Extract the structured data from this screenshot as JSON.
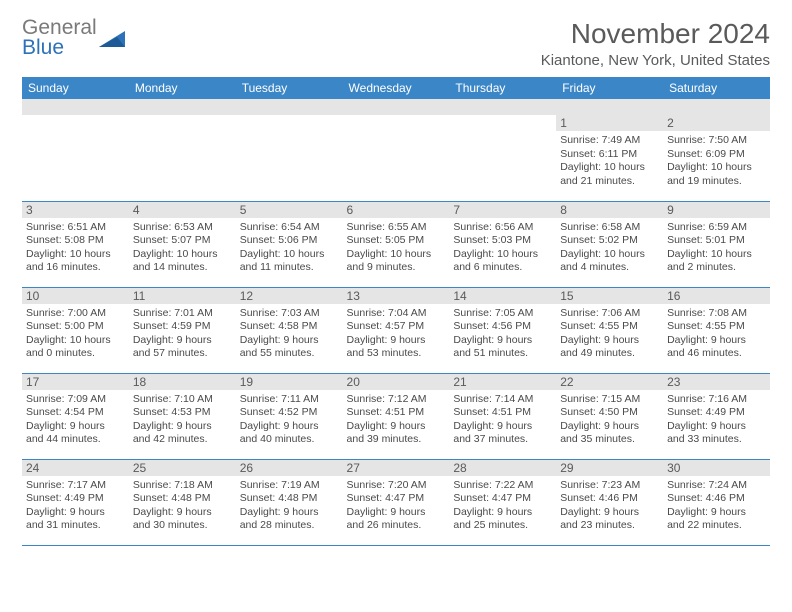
{
  "brand": {
    "line1": "General",
    "line2": "Blue"
  },
  "title": "November 2024",
  "location": "Kiantone, New York, United States",
  "colors": {
    "header_bg": "#3b86c7",
    "header_text": "#ffffff",
    "daynum_bg": "#e5e5e5",
    "text": "#4a4a4a",
    "rule": "#3b86c7",
    "brand_gray": "#7a7a7a",
    "brand_blue": "#2d72b8"
  },
  "dow": [
    "Sunday",
    "Monday",
    "Tuesday",
    "Wednesday",
    "Thursday",
    "Friday",
    "Saturday"
  ],
  "weeks": [
    [
      null,
      null,
      null,
      null,
      null,
      {
        "n": "1",
        "sr": "7:49 AM",
        "ss": "6:11 PM",
        "dl": "10 hours and 21 minutes."
      },
      {
        "n": "2",
        "sr": "7:50 AM",
        "ss": "6:09 PM",
        "dl": "10 hours and 19 minutes."
      }
    ],
    [
      {
        "n": "3",
        "sr": "6:51 AM",
        "ss": "5:08 PM",
        "dl": "10 hours and 16 minutes."
      },
      {
        "n": "4",
        "sr": "6:53 AM",
        "ss": "5:07 PM",
        "dl": "10 hours and 14 minutes."
      },
      {
        "n": "5",
        "sr": "6:54 AM",
        "ss": "5:06 PM",
        "dl": "10 hours and 11 minutes."
      },
      {
        "n": "6",
        "sr": "6:55 AM",
        "ss": "5:05 PM",
        "dl": "10 hours and 9 minutes."
      },
      {
        "n": "7",
        "sr": "6:56 AM",
        "ss": "5:03 PM",
        "dl": "10 hours and 6 minutes."
      },
      {
        "n": "8",
        "sr": "6:58 AM",
        "ss": "5:02 PM",
        "dl": "10 hours and 4 minutes."
      },
      {
        "n": "9",
        "sr": "6:59 AM",
        "ss": "5:01 PM",
        "dl": "10 hours and 2 minutes."
      }
    ],
    [
      {
        "n": "10",
        "sr": "7:00 AM",
        "ss": "5:00 PM",
        "dl": "10 hours and 0 minutes."
      },
      {
        "n": "11",
        "sr": "7:01 AM",
        "ss": "4:59 PM",
        "dl": "9 hours and 57 minutes."
      },
      {
        "n": "12",
        "sr": "7:03 AM",
        "ss": "4:58 PM",
        "dl": "9 hours and 55 minutes."
      },
      {
        "n": "13",
        "sr": "7:04 AM",
        "ss": "4:57 PM",
        "dl": "9 hours and 53 minutes."
      },
      {
        "n": "14",
        "sr": "7:05 AM",
        "ss": "4:56 PM",
        "dl": "9 hours and 51 minutes."
      },
      {
        "n": "15",
        "sr": "7:06 AM",
        "ss": "4:55 PM",
        "dl": "9 hours and 49 minutes."
      },
      {
        "n": "16",
        "sr": "7:08 AM",
        "ss": "4:55 PM",
        "dl": "9 hours and 46 minutes."
      }
    ],
    [
      {
        "n": "17",
        "sr": "7:09 AM",
        "ss": "4:54 PM",
        "dl": "9 hours and 44 minutes."
      },
      {
        "n": "18",
        "sr": "7:10 AM",
        "ss": "4:53 PM",
        "dl": "9 hours and 42 minutes."
      },
      {
        "n": "19",
        "sr": "7:11 AM",
        "ss": "4:52 PM",
        "dl": "9 hours and 40 minutes."
      },
      {
        "n": "20",
        "sr": "7:12 AM",
        "ss": "4:51 PM",
        "dl": "9 hours and 39 minutes."
      },
      {
        "n": "21",
        "sr": "7:14 AM",
        "ss": "4:51 PM",
        "dl": "9 hours and 37 minutes."
      },
      {
        "n": "22",
        "sr": "7:15 AM",
        "ss": "4:50 PM",
        "dl": "9 hours and 35 minutes."
      },
      {
        "n": "23",
        "sr": "7:16 AM",
        "ss": "4:49 PM",
        "dl": "9 hours and 33 minutes."
      }
    ],
    [
      {
        "n": "24",
        "sr": "7:17 AM",
        "ss": "4:49 PM",
        "dl": "9 hours and 31 minutes."
      },
      {
        "n": "25",
        "sr": "7:18 AM",
        "ss": "4:48 PM",
        "dl": "9 hours and 30 minutes."
      },
      {
        "n": "26",
        "sr": "7:19 AM",
        "ss": "4:48 PM",
        "dl": "9 hours and 28 minutes."
      },
      {
        "n": "27",
        "sr": "7:20 AM",
        "ss": "4:47 PM",
        "dl": "9 hours and 26 minutes."
      },
      {
        "n": "28",
        "sr": "7:22 AM",
        "ss": "4:47 PM",
        "dl": "9 hours and 25 minutes."
      },
      {
        "n": "29",
        "sr": "7:23 AM",
        "ss": "4:46 PM",
        "dl": "9 hours and 23 minutes."
      },
      {
        "n": "30",
        "sr": "7:24 AM",
        "ss": "4:46 PM",
        "dl": "9 hours and 22 minutes."
      }
    ]
  ],
  "labels": {
    "sunrise": "Sunrise:",
    "sunset": "Sunset:",
    "daylight": "Daylight:"
  }
}
